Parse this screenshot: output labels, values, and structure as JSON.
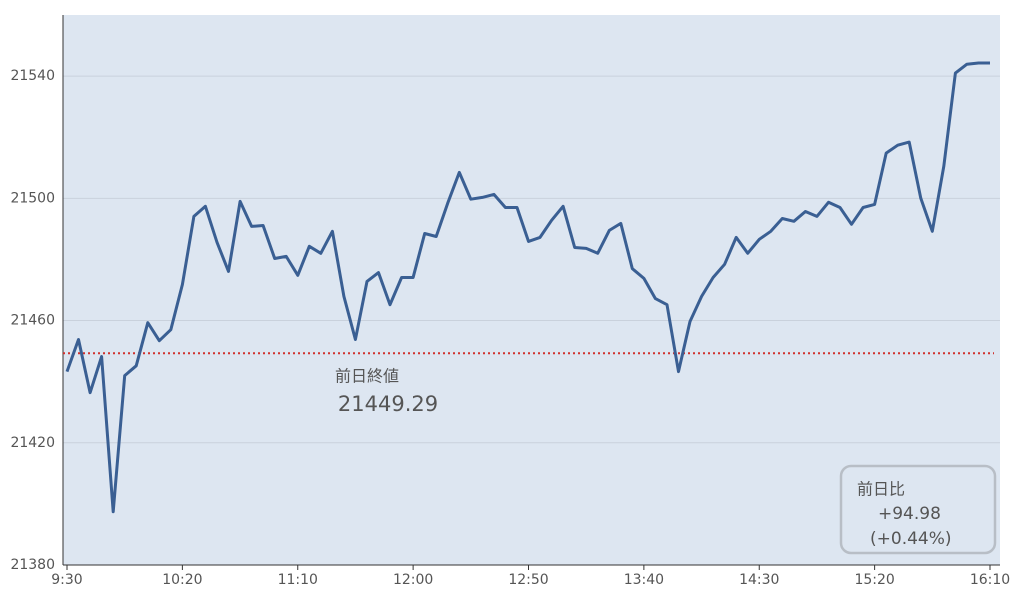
{
  "chart_data": {
    "type": "line",
    "x": [
      "9:30",
      "9:35",
      "9:40",
      "9:45",
      "9:50",
      "9:55",
      "10:00",
      "10:05",
      "10:10",
      "10:15",
      "10:20",
      "10:25",
      "10:30",
      "10:35",
      "10:40",
      "10:45",
      "10:50",
      "10:55",
      "11:00",
      "11:05",
      "11:10",
      "11:15",
      "11:20",
      "11:25",
      "11:30",
      "11:35",
      "11:40",
      "11:45",
      "11:50",
      "11:55",
      "12:00",
      "12:05",
      "12:10",
      "12:15",
      "12:20",
      "12:25",
      "12:30",
      "12:35",
      "12:40",
      "12:45",
      "12:50",
      "12:55",
      "13:00",
      "13:05",
      "13:10",
      "13:15",
      "13:20",
      "13:25",
      "13:30",
      "13:35",
      "13:40",
      "13:45",
      "13:50",
      "13:55",
      "14:00",
      "14:05",
      "14:10",
      "14:15",
      "14:20",
      "14:25",
      "14:30",
      "14:35",
      "14:40",
      "14:45",
      "14:50",
      "14:55",
      "15:00",
      "15:05",
      "15:10",
      "15:15",
      "15:20",
      "15:25",
      "15:30",
      "15:35",
      "15:40",
      "15:45",
      "15:50",
      "15:55",
      "16:00",
      "16:05",
      "16:10"
    ],
    "series": [
      {
        "color": "#3a5f93",
        "values": [
          21443.3,
          21453.8,
          21436.4,
          21448.2,
          21397.4,
          21442,
          21445.2,
          21459.3,
          21453.4,
          21457,
          21471.8,
          21494.1,
          21497.4,
          21485.6,
          21476.1,
          21499,
          21490.8,
          21491.1,
          21480.3,
          21481,
          21474.8,
          21484.3,
          21482,
          21489.2,
          21467.9,
          21453.8,
          21472.8,
          21475.7,
          21465.2,
          21474.1,
          21474.1,
          21488.5,
          21487.5,
          21498.4,
          21508.5,
          21499.7,
          21500.3,
          21501.3,
          21497,
          21497,
          21485.9,
          21487.2,
          21492.8,
          21497.4,
          21483.9,
          21483.6,
          21482,
          21489.5,
          21491.8,
          21477,
          21473.8,
          21467.2,
          21465.2,
          21443.3,
          21459.7,
          21467.9,
          21474.1,
          21478.4,
          21487.2,
          21482,
          21486.6,
          21489.2,
          21493.4,
          21492.5,
          21495.7,
          21494.1,
          21498.7,
          21497,
          21491.5,
          21497,
          21498,
          21514.8,
          21517.4,
          21518.4,
          21500,
          21489.2,
          21510.5,
          21541,
          21543.9,
          21544.3,
          21544.3
        ]
      }
    ],
    "xticks": [
      "9:30",
      "10:20",
      "11:10",
      "12:00",
      "12:50",
      "13:40",
      "14:30",
      "15:20",
      "16:10"
    ],
    "ylim": [
      21380,
      21560
    ],
    "yticks": [
      21380,
      21420,
      21460,
      21500,
      21540
    ],
    "grid": true,
    "reference_line": {
      "value": 21449.29,
      "label": "前日終値",
      "color": "#d0312d"
    },
    "change_box": {
      "label": "前日比",
      "value": "+94.98",
      "percent": "(+0.44%)"
    }
  }
}
